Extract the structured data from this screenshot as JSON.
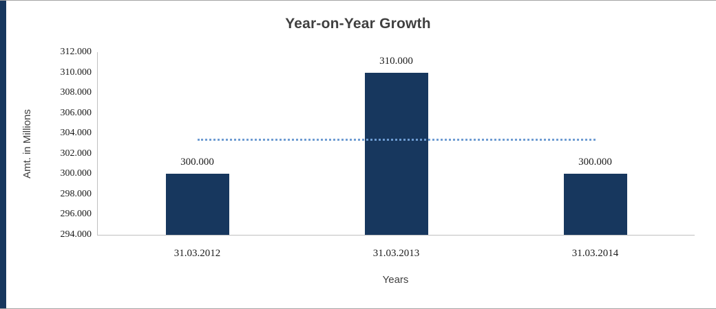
{
  "window": {
    "background": "#FFFFFF",
    "accent_strip_color": "#17375E",
    "frame_border_color": "#A3A3A3"
  },
  "chart_data": {
    "type": "bar",
    "title": "Year-on-Year Growth",
    "xlabel": "Years",
    "ylabel": "Amt. in Millions",
    "categories": [
      "31.03.2012",
      "31.03.2013",
      "31.03.2014"
    ],
    "values": [
      300,
      310,
      300
    ],
    "data_labels": [
      "300.000",
      "310.000",
      "300.000"
    ],
    "y_ticks": [
      "312.000",
      "310.000",
      "308.000",
      "306.000",
      "304.000",
      "302.000",
      "300.000",
      "298.000",
      "296.000",
      "294.000"
    ],
    "ylim": [
      294,
      312
    ],
    "y_step": 2,
    "grid": false,
    "legend": "none",
    "bar_color": "#17375E",
    "axis_line_color": "#BFBFBF",
    "title_color": "#404040",
    "trendline": {
      "kind": "linear-trendline",
      "value": 303.333,
      "style": "dotted",
      "color": "#6E9CD2"
    }
  }
}
